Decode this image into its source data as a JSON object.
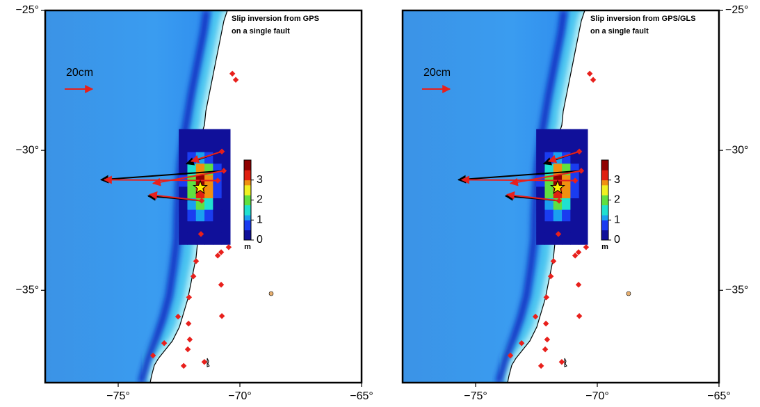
{
  "panels": [
    {
      "title_lines": [
        "Slip inversion from GPS",
        "on a single fault"
      ],
      "scale_label": "20cm",
      "lat_tick_side": "left"
    },
    {
      "title_lines": [
        "Slip inversion from GPS/GLS",
        "on a single fault"
      ],
      "scale_label": "20cm",
      "lat_tick_side": "right"
    }
  ],
  "lonlim": [
    -78,
    -65
  ],
  "latlim": [
    -38.3,
    -25
  ],
  "lon_ticks": [
    {
      "value": -75,
      "label": "−75°"
    },
    {
      "value": -70,
      "label": "−70°"
    },
    {
      "value": -65,
      "label": "−65°"
    }
  ],
  "lat_ticks": [
    {
      "value": -25,
      "label": "−25°"
    },
    {
      "value": -30,
      "label": "−30°"
    },
    {
      "value": -35,
      "label": "−35°"
    }
  ],
  "colorbar": {
    "label": "m",
    "lim": [
      0,
      4
    ],
    "ticks": [
      0,
      1,
      2,
      3
    ],
    "colormap": [
      "#10109a",
      "#1a3cf0",
      "#1aa0f0",
      "#20e0d0",
      "#60e040",
      "#f0f020",
      "#f09010",
      "#e02010",
      "#900000"
    ]
  },
  "slip": {
    "lonlim": [
      -72.51,
      -70.4
    ],
    "latlim": [
      -33.36,
      -29.24
    ],
    "grid": [
      [
        0,
        0,
        0,
        0,
        0,
        0
      ],
      [
        0,
        0.1,
        0.3,
        0.2,
        0,
        0
      ],
      [
        0.1,
        0.6,
        1.2,
        0.8,
        0.2,
        0
      ],
      [
        0.3,
        1.5,
        2.8,
        2.0,
        0.5,
        0
      ],
      [
        0.5,
        2.2,
        3.8,
        3.0,
        0.8,
        0.1
      ],
      [
        0.4,
        2.0,
        3.5,
        2.8,
        0.7,
        0.1
      ],
      [
        0.2,
        1.2,
        2.2,
        1.6,
        0.4,
        0
      ],
      [
        0.1,
        0.5,
        0.9,
        0.6,
        0.1,
        0
      ],
      [
        0,
        0.1,
        0.2,
        0.1,
        0,
        0
      ],
      [
        0,
        0,
        0,
        0,
        0,
        0
      ]
    ]
  },
  "epicenter": [
    -71.63,
    -31.33
  ],
  "stations": [
    [
      -70.31,
      -27.26
    ],
    [
      -70.17,
      -27.48
    ],
    [
      -70.74,
      -30.04
    ],
    [
      -70.66,
      -30.73
    ],
    [
      -70.91,
      -31.08
    ],
    [
      -71.57,
      -31.8
    ],
    [
      -71.6,
      -32.99
    ],
    [
      -70.46,
      -33.46
    ],
    [
      -70.77,
      -33.64
    ],
    [
      -71.8,
      -33.96
    ],
    [
      -70.91,
      -33.76
    ],
    [
      -71.91,
      -34.5
    ],
    [
      -70.77,
      -34.8
    ],
    [
      -72.09,
      -35.25
    ],
    [
      -70.74,
      -35.92
    ],
    [
      -72.54,
      -35.94
    ],
    [
      -72.11,
      -36.19
    ],
    [
      -72.06,
      -36.76
    ],
    [
      -73.11,
      -36.89
    ],
    [
      -72.14,
      -37.11
    ],
    [
      -73.57,
      -37.33
    ],
    [
      -71.46,
      -37.56
    ],
    [
      -72.31,
      -37.7
    ]
  ],
  "vectors": {
    "red": [
      {
        "start": [
          -70.74,
          -30.04
        ],
        "end": [
          -72.0,
          -30.39
        ]
      },
      {
        "start": [
          -70.66,
          -30.73
        ],
        "end": [
          -73.57,
          -31.18
        ]
      },
      {
        "start": [
          -70.91,
          -31.08
        ],
        "end": [
          -75.57,
          -31.05
        ]
      },
      {
        "start": [
          -71.57,
          -31.8
        ],
        "end": [
          -73.71,
          -31.58
        ]
      }
    ],
    "black": [
      {
        "start": [
          -70.74,
          -30.04
        ],
        "end": [
          -72.2,
          -30.48
        ]
      },
      {
        "start": [
          -70.66,
          -30.73
        ],
        "end": [
          -75.71,
          -31.05
        ]
      },
      {
        "start": [
          -71.57,
          -31.8
        ],
        "end": [
          -73.77,
          -31.63
        ]
      }
    ]
  }
}
